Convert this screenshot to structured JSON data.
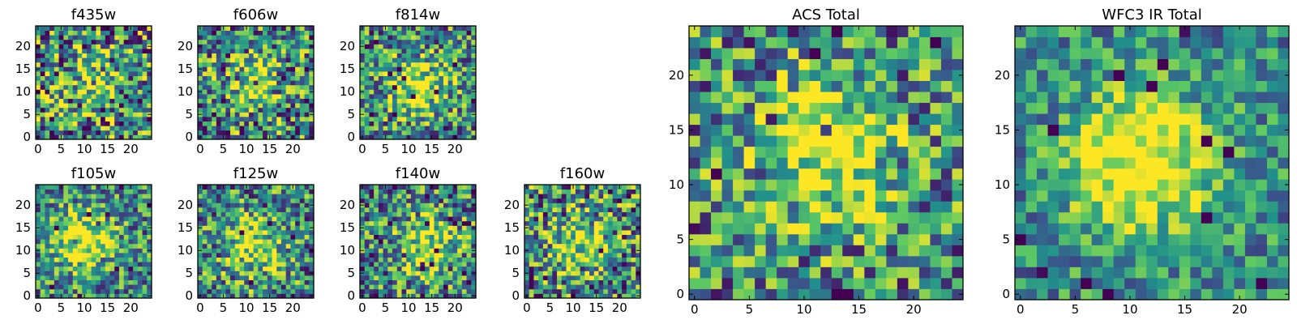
{
  "chart_data": [
    {
      "type": "heatmap",
      "title": "f435w",
      "xlim": [
        0,
        24
      ],
      "ylim": [
        0,
        24
      ],
      "xticks": [
        0,
        5,
        10,
        15,
        20
      ],
      "yticks": [
        0,
        5,
        10,
        15,
        20
      ],
      "pattern": "noise",
      "peak_center": [
        12,
        12
      ],
      "peak_amplitude": 0.25,
      "noise_level": 0.55,
      "seed": 11
    },
    {
      "type": "heatmap",
      "title": "f606w",
      "xlim": [
        0,
        24
      ],
      "ylim": [
        0,
        24
      ],
      "xticks": [
        0,
        5,
        10,
        15,
        20
      ],
      "yticks": [
        0,
        5,
        10,
        15,
        20
      ],
      "pattern": "noise",
      "peak_center": [
        11,
        12
      ],
      "peak_amplitude": 0.35,
      "noise_level": 0.5,
      "seed": 23
    },
    {
      "type": "heatmap",
      "title": "f814w",
      "xlim": [
        0,
        24
      ],
      "ylim": [
        0,
        24
      ],
      "xticks": [
        0,
        5,
        10,
        15,
        20
      ],
      "yticks": [
        0,
        5,
        10,
        15,
        20
      ],
      "pattern": "noise",
      "peak_center": [
        12,
        11
      ],
      "peak_amplitude": 0.5,
      "noise_level": 0.45,
      "seed": 37
    },
    {
      "type": "heatmap",
      "title": "f105w",
      "xlim": [
        0,
        24
      ],
      "ylim": [
        0,
        24
      ],
      "xticks": [
        0,
        5,
        10,
        15,
        20
      ],
      "yticks": [
        0,
        5,
        10,
        15,
        20
      ],
      "pattern": "noise",
      "peak_center": [
        10,
        12
      ],
      "peak_amplitude": 0.55,
      "noise_level": 0.4,
      "seed": 41
    },
    {
      "type": "heatmap",
      "title": "f125w",
      "xlim": [
        0,
        24
      ],
      "ylim": [
        0,
        24
      ],
      "xticks": [
        0,
        5,
        10,
        15,
        20
      ],
      "yticks": [
        0,
        5,
        10,
        15,
        20
      ],
      "pattern": "noise",
      "peak_center": [
        12,
        11
      ],
      "peak_amplitude": 0.45,
      "noise_level": 0.45,
      "seed": 53
    },
    {
      "type": "heatmap",
      "title": "f140w",
      "xlim": [
        0,
        24
      ],
      "ylim": [
        0,
        24
      ],
      "xticks": [
        0,
        5,
        10,
        15,
        20
      ],
      "yticks": [
        0,
        5,
        10,
        15,
        20
      ],
      "pattern": "noise",
      "peak_center": [
        14,
        11
      ],
      "peak_amplitude": 0.45,
      "noise_level": 0.45,
      "seed": 67
    },
    {
      "type": "heatmap",
      "title": "f160w",
      "xlim": [
        0,
        24
      ],
      "ylim": [
        0,
        24
      ],
      "xticks": [
        0,
        5,
        10,
        15,
        20
      ],
      "yticks": [
        0,
        5,
        10,
        15,
        20
      ],
      "pattern": "noise",
      "peak_center": [
        11,
        12
      ],
      "peak_amplitude": 0.4,
      "noise_level": 0.5,
      "seed": 79
    },
    {
      "type": "heatmap",
      "title": "ACS Total",
      "xlim": [
        0,
        24
      ],
      "ylim": [
        0,
        24
      ],
      "xticks": [
        0,
        5,
        10,
        15,
        20
      ],
      "yticks": [
        0,
        5,
        10,
        15,
        20
      ],
      "pattern": "noise",
      "peak_center": [
        12,
        13
      ],
      "peak_amplitude": 0.55,
      "noise_level": 0.45,
      "seed": 97
    },
    {
      "type": "heatmap",
      "title": "WFC3 IR Total",
      "xlim": [
        0,
        24
      ],
      "ylim": [
        0,
        24
      ],
      "xticks": [
        0,
        5,
        10,
        15,
        20
      ],
      "yticks": [
        0,
        5,
        10,
        15,
        20
      ],
      "pattern": "noise",
      "peak_center": [
        11,
        12
      ],
      "peak_amplitude": 0.65,
      "noise_level": 0.3,
      "seed": 113
    }
  ],
  "colormap": [
    "#440154",
    "#3b528b",
    "#21918c",
    "#5ec962",
    "#fde725"
  ]
}
